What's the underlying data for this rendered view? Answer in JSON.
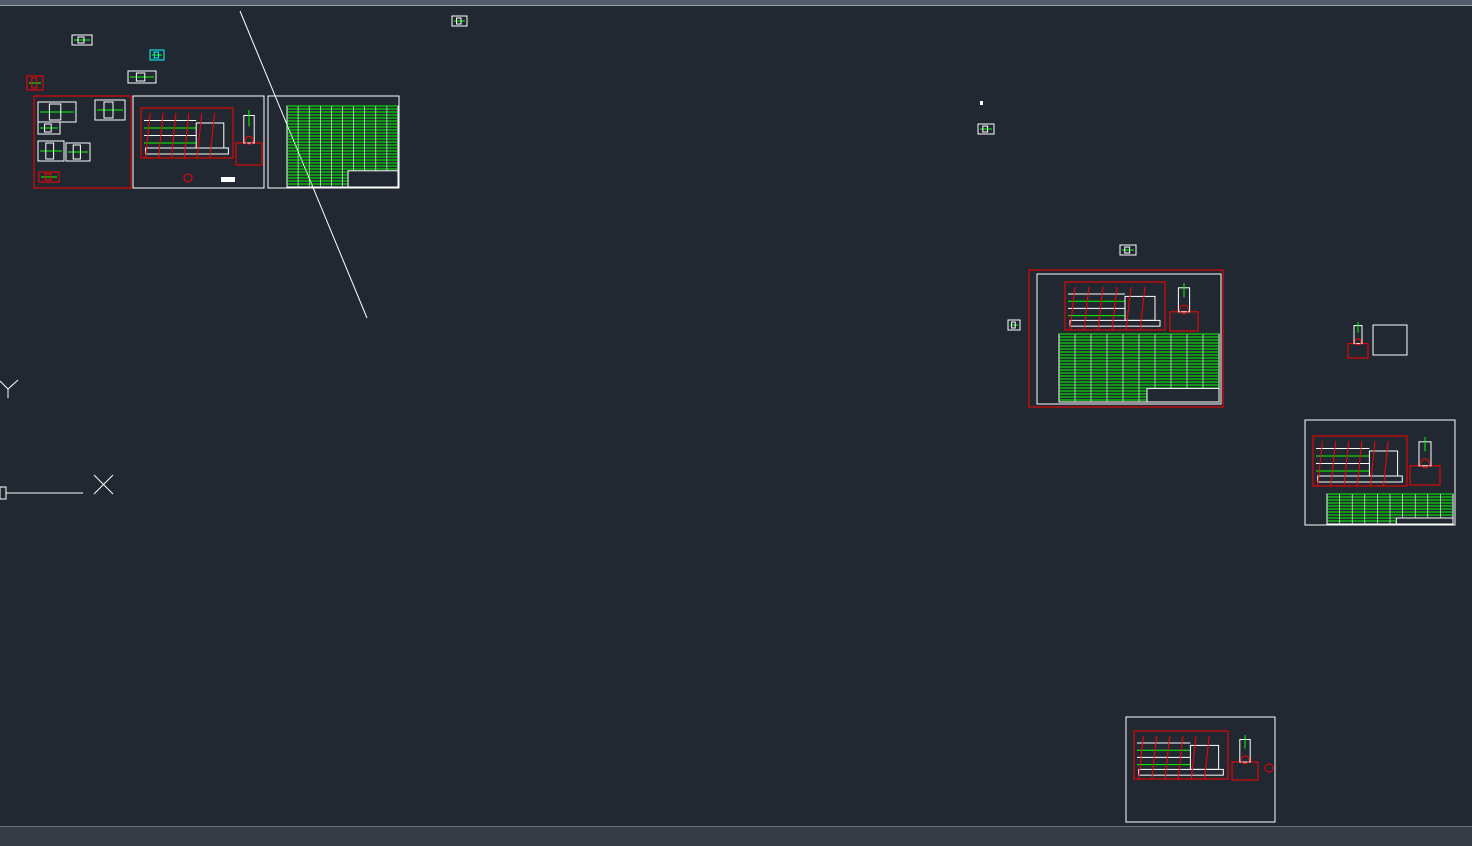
{
  "app": {
    "view": "model-space"
  },
  "colors": {
    "background": "#222831",
    "line_white": "#ffffff",
    "line_red": "#ff0000",
    "line_green": "#00ff00",
    "line_cyan": "#00ffff",
    "line_yellow": "#ffff00"
  },
  "ucs_icon": {
    "x_axis_label": "X",
    "y_axis_label": "Y",
    "icon": "ucs-icon"
  }
}
